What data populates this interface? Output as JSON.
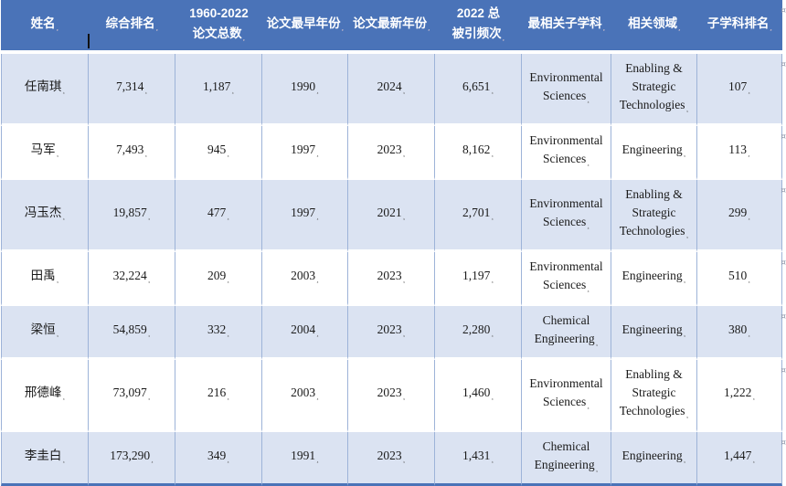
{
  "table": {
    "columns": [
      "姓名",
      "综合排名",
      "1960-2022\n论文总数",
      "论文最早年份",
      "论文最新年份",
      "2022 总\n被引频次",
      "最相关子学科",
      "相关领域",
      "子学科排名"
    ],
    "rows": [
      {
        "cells": [
          "任南琪",
          "7,314",
          "1,187",
          "1990",
          "2024",
          "6,651",
          "Environmental Sciences",
          "Enabling & Strategic Technologies",
          "107"
        ]
      },
      {
        "cells": [
          "马军",
          "7,493",
          "945",
          "1997",
          "2023",
          "8,162",
          "Environmental Sciences",
          "Engineering",
          "113"
        ]
      },
      {
        "cells": [
          "冯玉杰",
          "19,857",
          "477",
          "1997",
          "2021",
          "2,701",
          "Environmental Sciences",
          "Enabling & Strategic Technologies",
          "299"
        ]
      },
      {
        "cells": [
          "田禹",
          "32,224",
          "209",
          "2003",
          "2023",
          "1,197",
          "Environmental Sciences",
          "Engineering",
          "510"
        ]
      },
      {
        "cells": [
          "梁恒",
          "54,859",
          "332",
          "2004",
          "2023",
          "2,280",
          "Chemical Engineering",
          "Engineering",
          "380"
        ]
      },
      {
        "cells": [
          "邢德峰",
          "73,097",
          "216",
          "2003",
          "2023",
          "1,460",
          "Environmental Sciences",
          "Enabling & Strategic Technologies",
          "1,222"
        ]
      },
      {
        "cells": [
          "李圭白",
          "173,290",
          "349",
          "1991",
          "2023",
          "1,431",
          "Chemical Engineering",
          "Engineering",
          "1,447"
        ]
      }
    ]
  },
  "marks": {
    "cell_end": "¸",
    "row_end": "¤"
  },
  "colors": {
    "header_bg": "#4a73b8",
    "header_text": "#ffffff",
    "row_alt_bg": "#dbe3f2",
    "row_bg": "#ffffff",
    "grid_line": "#9db3d8",
    "bottom_border": "#4a73b8",
    "body_text": "#1a1a1a"
  }
}
